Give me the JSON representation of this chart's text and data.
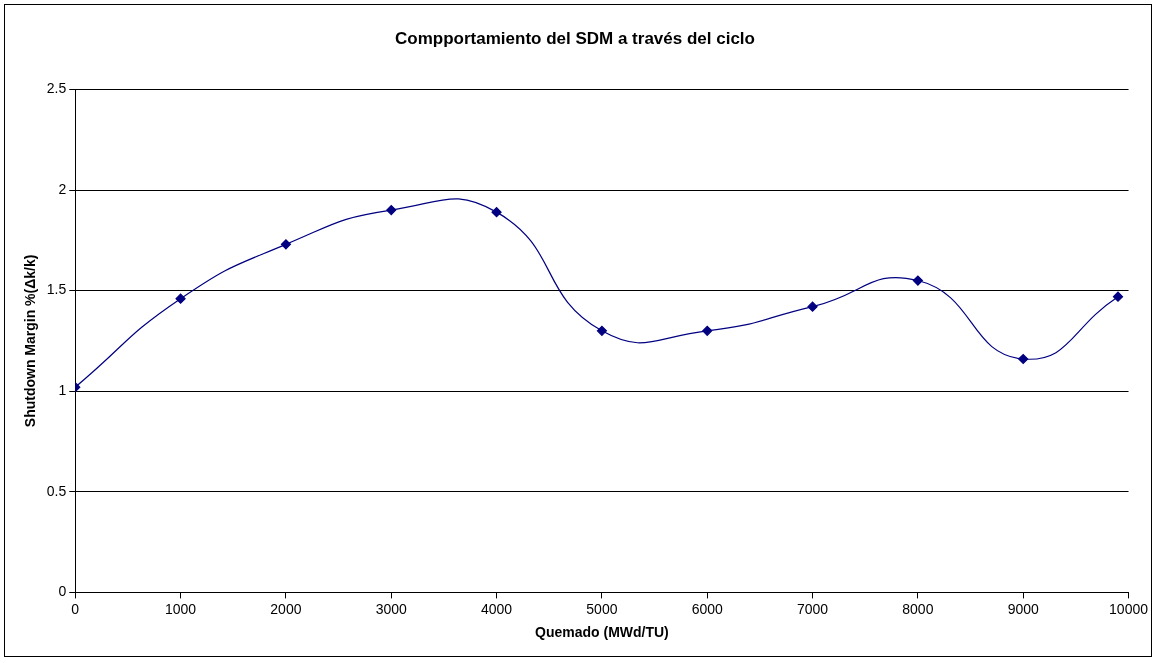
{
  "chart_data": {
    "type": "line",
    "title": "Compportamiento del SDM a través del ciclo",
    "xlabel": "Quemado (MWd/TU)",
    "ylabel": "Shutdown Margin %(Δk/k)",
    "x": [
      0,
      1000,
      2000,
      3000,
      4000,
      5000,
      6000,
      7000,
      8000,
      9000,
      9900
    ],
    "series": [
      {
        "color": "#000080",
        "values": [
          1.02,
          1.46,
          1.73,
          1.9,
          1.89,
          1.3,
          1.3,
          1.42,
          1.55,
          1.16,
          1.47
        ]
      }
    ],
    "xlim": [
      0,
      10000
    ],
    "xticks": [
      0,
      1000,
      2000,
      3000,
      4000,
      5000,
      6000,
      7000,
      8000,
      9000,
      10000
    ],
    "ylim": [
      0,
      2.5
    ],
    "yticks": [
      0,
      0.5,
      1,
      1.5,
      2,
      2.5
    ],
    "grid": "y",
    "legend": false,
    "marker": "diamond"
  }
}
